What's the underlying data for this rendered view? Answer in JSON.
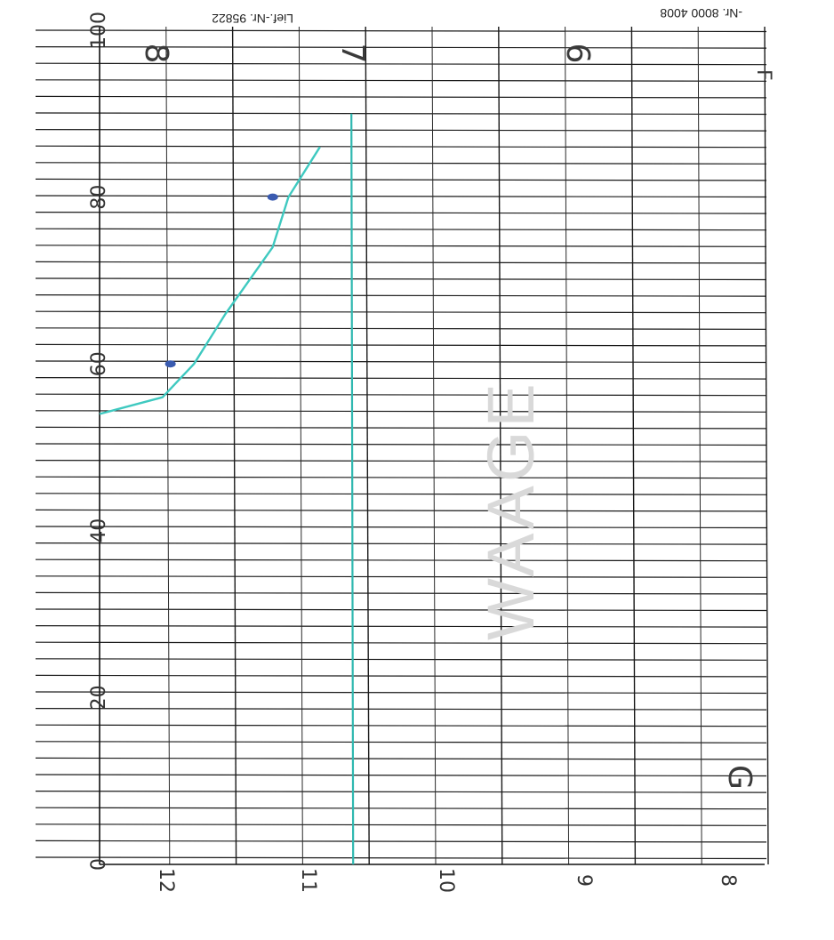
{
  "header": {
    "lief_nr": "Lief.-Nr. 95822",
    "nr": "-Nr. 8000 4008",
    "corner_mark": "F"
  },
  "chart_data": {
    "type": "line",
    "title": "",
    "xlabel": "",
    "ylabel": "",
    "y_axis": {
      "ticks": [
        "0",
        "20",
        "40",
        "60",
        "80",
        "100"
      ],
      "ylim": [
        0,
        100
      ]
    },
    "x_axis_bottom": {
      "ticks": [
        "12",
        "11",
        "10",
        "9",
        "8"
      ]
    },
    "x_axis_top_handwritten": {
      "ticks": [
        "8",
        "7",
        "6"
      ]
    },
    "grid": true,
    "series": [
      {
        "values_x": [
          12.0,
          11.6,
          11.4,
          11.2,
          10.9,
          10.8,
          10.6
        ],
        "values_y": [
          54,
          56,
          60,
          66,
          74,
          80,
          86
        ],
        "color": "#3fc9c0"
      }
    ],
    "vertical_marker": {
      "x": 10.4,
      "y_range": [
        0,
        90
      ],
      "color": "#2fb8b0"
    },
    "markers": [
      {
        "x": 11.55,
        "y": 60,
        "color": "#3a5bb0"
      },
      {
        "x": 10.9,
        "y": 80,
        "color": "#3a5bb0"
      }
    ],
    "annotations": {
      "corner_letter": "G",
      "watermark": "WAAGE"
    }
  },
  "colors": {
    "trace": "#3fc9c0",
    "marker": "#3a5bb0",
    "grid": "#1a1a1a",
    "ink": "#333333"
  }
}
